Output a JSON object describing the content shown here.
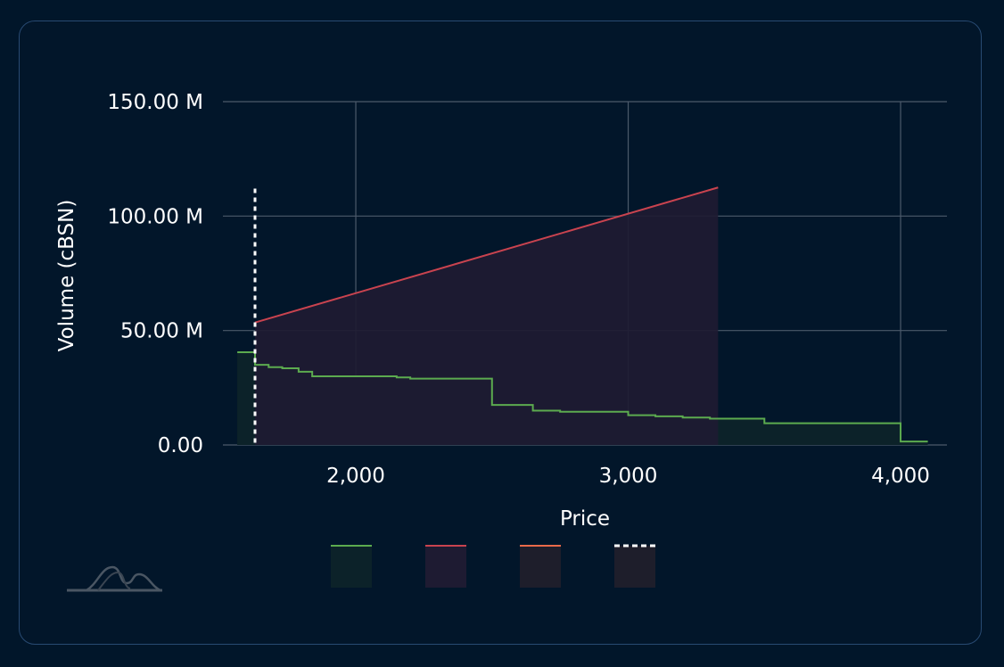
{
  "chart_data": {
    "type": "area",
    "xlabel": "Price",
    "ylabel": "Volume (cBSN)",
    "xlim": [
      1500,
      4150
    ],
    "ylim": [
      0,
      150000000
    ],
    "x_ticks": [
      2000,
      3000,
      4000
    ],
    "x_tick_labels": [
      "2,000",
      "3,000",
      "4,000"
    ],
    "y_ticks": [
      0,
      50000000,
      100000000,
      150000000
    ],
    "y_tick_labels": [
      "0.00",
      "50.00 M",
      "100.00 M",
      "150.00 M"
    ],
    "grid": true,
    "legend": "bottom",
    "series": [
      {
        "color": "#5cab4f",
        "fill": "#0c2229",
        "step": true,
        "x": [
          1565,
          1630,
          1680,
          1730,
          1790,
          1840,
          1920,
          2150,
          2200,
          2500,
          2650,
          2750,
          2900,
          3000,
          3100,
          3200,
          3300,
          3500,
          3650,
          3800,
          3900,
          4000,
          4100
        ],
        "y": [
          40500000,
          35000000,
          34000000,
          33500000,
          32000000,
          30000000,
          30000000,
          29500000,
          29000000,
          17500000,
          15000000,
          14500000,
          14500000,
          13000000,
          12500000,
          12000000,
          11500000,
          9500000,
          9500000,
          9500000,
          9500000,
          1500000,
          1500000
        ]
      },
      {
        "color": "#c9434f",
        "fill": "#1e1b32",
        "step": false,
        "x": [
          1630,
          3330
        ],
        "y": [
          53500000,
          112500000
        ]
      }
    ],
    "current_price_marker": {
      "x": 1630,
      "color": "#ffffff",
      "style": "dotted",
      "y_top": 112000000
    },
    "legend_entries": [
      {
        "line": "#5cab4f",
        "fill": "#0c2229",
        "style": "solid"
      },
      {
        "line": "#c9434f",
        "fill": "#1e1b32",
        "style": "solid"
      },
      {
        "line": "#ea6a4a",
        "fill": "#1e1e2b",
        "style": "solid"
      },
      {
        "line": "#ffffff",
        "fill": "#1e1e2b",
        "style": "dotted"
      }
    ]
  },
  "logo": {
    "name": "mountain-logo-icon",
    "color": "#4a5663"
  },
  "colors": {
    "grid": "#4c5a6b",
    "axis_text": "#ffffff",
    "card_border": "#284a72",
    "background": "#02162a",
    "overlap_fill": "#212430"
  }
}
